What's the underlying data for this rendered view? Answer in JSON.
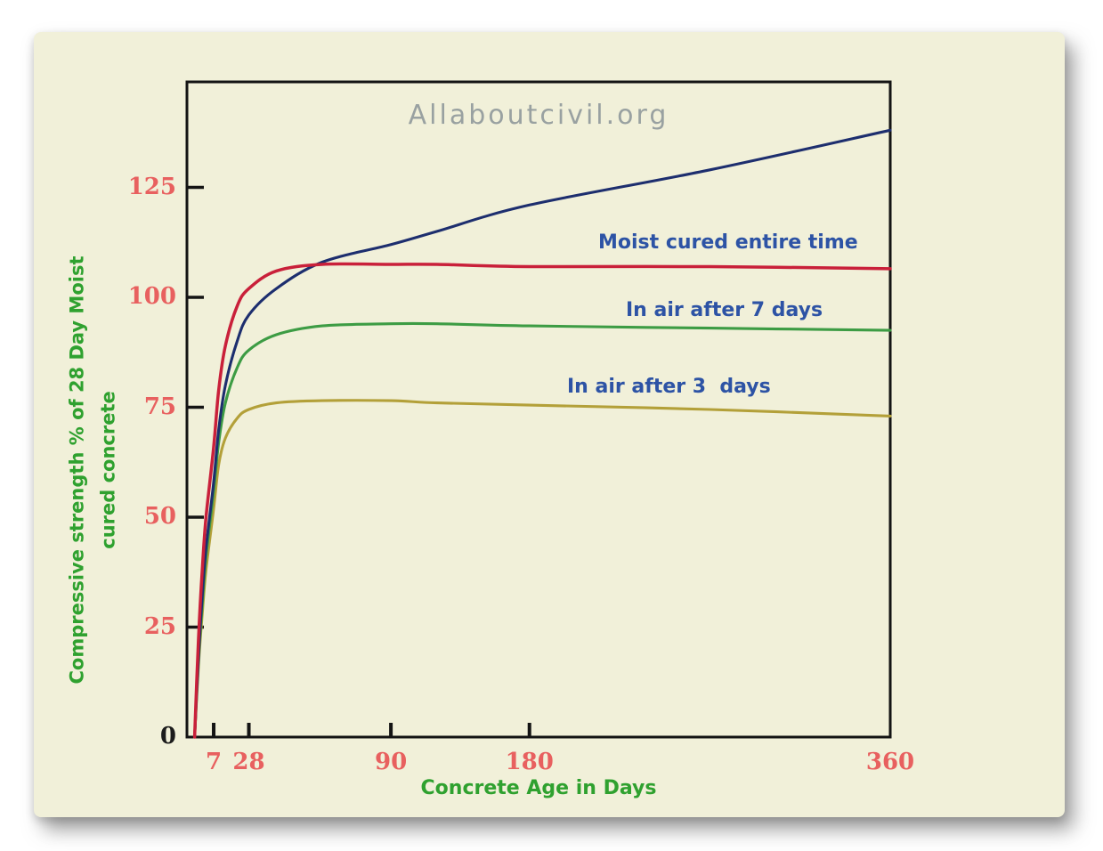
{
  "watermark": "Allaboutcivil.org",
  "axes": {
    "y_title_line1": "Compressive strength  % of 28 Day Moist",
    "y_title_line2": "cured concrete",
    "x_title": "Concrete Age in Days"
  },
  "colors": {
    "panel_bg": "#f1f0d9",
    "axis": "#141414",
    "tick_label": "#e8605f",
    "zero_label": "#1c1c1c",
    "axis_title": "#2fa12f",
    "series_label": "#2d53a5",
    "watermark": "#99a1a1"
  },
  "chart_data": {
    "type": "line",
    "title": "",
    "xlabel": "Concrete Age in Days",
    "ylabel": "Compressive strength % of 28 Day Moist cured concrete",
    "xlim": [
      0,
      360
    ],
    "ylim": [
      0,
      149
    ],
    "yticks": [
      0,
      25,
      50,
      75,
      100,
      125
    ],
    "xticks": [
      7,
      28,
      90,
      180,
      360
    ],
    "x_axis_map": [
      [
        0,
        0
      ],
      [
        7,
        0.038
      ],
      [
        28,
        0.088
      ],
      [
        90,
        0.29
      ],
      [
        180,
        0.487
      ],
      [
        360,
        1.0
      ]
    ],
    "grid": false,
    "legend_position": "inline-annotations",
    "x": [
      2,
      3,
      4,
      5,
      7,
      10,
      14,
      21,
      28,
      40,
      60,
      90,
      120,
      180,
      270,
      360
    ],
    "series": [
      {
        "name": "Moist cured entire time",
        "label": "Moist cured entire time",
        "color": "#1d2e6e",
        "values": [
          0,
          18,
          32,
          43,
          58,
          70,
          80,
          90,
          96,
          102,
          108,
          112,
          115,
          121,
          129,
          138
        ]
      },
      {
        "name": "unlabeled-red-curve",
        "label": "",
        "color": "#c9203a",
        "values": [
          0,
          22,
          38,
          50,
          66,
          79,
          89,
          98,
          102,
          106,
          107.5,
          107.5,
          107.5,
          107,
          107,
          106.5
        ]
      },
      {
        "name": "In air after 7 days",
        "label": "In air after 7 days",
        "color": "#3d9c44",
        "values": [
          0,
          17,
          30,
          41,
          56,
          67,
          76,
          84,
          88,
          91.5,
          93.5,
          94,
          94,
          93.5,
          93,
          92.5
        ]
      },
      {
        "name": "In air after 3 days",
        "label": "In air after 3  days",
        "color": "#b3a039",
        "values": [
          0,
          16,
          28,
          38,
          52,
          62,
          68,
          72.5,
          74.5,
          76,
          76.5,
          76.5,
          76,
          75.5,
          74.5,
          73
        ]
      }
    ]
  }
}
